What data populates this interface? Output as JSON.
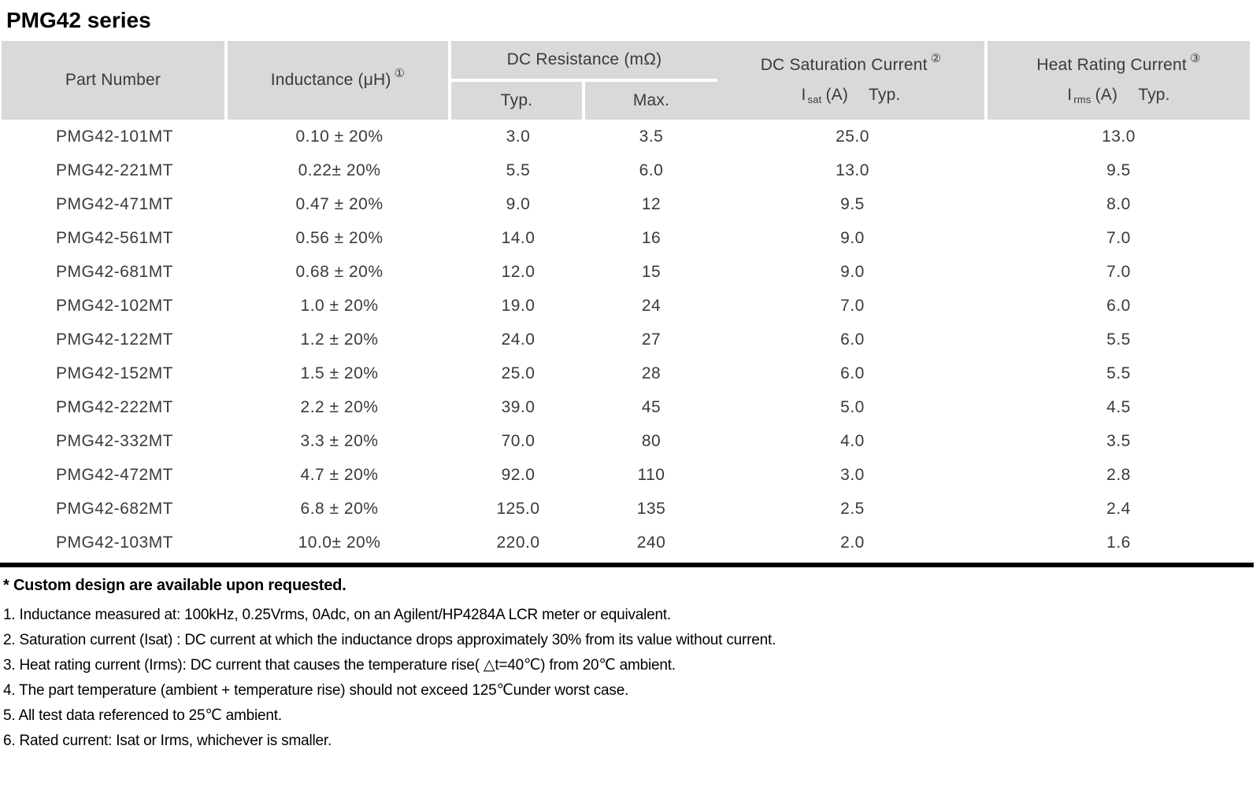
{
  "title": "PMG42 series",
  "table": {
    "headers": {
      "part_number": "Part Number",
      "inductance": "Inductance (μH)",
      "inductance_note": "①",
      "dc_resistance": "DC Resistance (mΩ)",
      "typ": "Typ.",
      "max": "Max.",
      "dc_saturation": "DC Saturation Current",
      "dc_saturation_note": "②",
      "isat_symbol": "I",
      "isat_subscript": "sat",
      "isat_unit": "(A)",
      "isat_typ": "Typ.",
      "heat_rating": "Heat Rating Current",
      "heat_rating_note": "③",
      "irms_symbol": "I",
      "irms_subscript": "rms",
      "irms_unit": "(A)",
      "irms_typ": "Typ."
    },
    "rows": [
      [
        "PMG42-101MT",
        "0.10 ± 20%",
        "3.0",
        "3.5",
        "25.0",
        "13.0"
      ],
      [
        "PMG42-221MT",
        "0.22± 20%",
        "5.5",
        "6.0",
        "13.0",
        "9.5"
      ],
      [
        "PMG42-471MT",
        "0.47 ± 20%",
        "9.0",
        "12",
        "9.5",
        "8.0"
      ],
      [
        "PMG42-561MT",
        "0.56 ± 20%",
        "14.0",
        "16",
        "9.0",
        "7.0"
      ],
      [
        "PMG42-681MT",
        "0.68 ± 20%",
        "12.0",
        "15",
        "9.0",
        "7.0"
      ],
      [
        "PMG42-102MT",
        "1.0 ± 20%",
        "19.0",
        "24",
        "7.0",
        "6.0"
      ],
      [
        "PMG42-122MT",
        "1.2 ± 20%",
        "24.0",
        "27",
        "6.0",
        "5.5"
      ],
      [
        "PMG42-152MT",
        "1.5 ± 20%",
        "25.0",
        "28",
        "6.0",
        "5.5"
      ],
      [
        "PMG42-222MT",
        "2.2 ± 20%",
        "39.0",
        "45",
        "5.0",
        "4.5"
      ],
      [
        "PMG42-332MT",
        "3.3 ± 20%",
        "70.0",
        "80",
        "4.0",
        "3.5"
      ],
      [
        "PMG42-472MT",
        "4.7 ± 20%",
        "92.0",
        "110",
        "3.0",
        "2.8"
      ],
      [
        "PMG42-682MT",
        "6.8 ± 20%",
        "125.0",
        "135",
        "2.5",
        "2.4"
      ],
      [
        "PMG42-103MT",
        "10.0± 20%",
        "220.0",
        "240",
        "2.0",
        "1.6"
      ]
    ]
  },
  "footnotes": {
    "custom_design": "* Custom design are available upon requested.",
    "notes": [
      "1. Inductance measured at: 100kHz, 0.25Vrms, 0Adc, on an Agilent/HP4284A LCR meter or equivalent.",
      "2. Saturation current (Isat) : DC current at which the inductance drops approximately 30% from its value without current.",
      "3. Heat rating current (Irms): DC current that causes the temperature rise( △t=40℃) from 20℃ ambient.",
      "4. The part temperature (ambient + temperature rise) should not exceed 125℃under worst case.",
      "5. All test data referenced to 25℃ ambient.",
      "6. Rated current: Isat or Irms, whichever is smaller."
    ]
  },
  "colors": {
    "header_bg": "#d9d9d9",
    "table_text": "#3a3a3a",
    "rule": "#000000"
  }
}
